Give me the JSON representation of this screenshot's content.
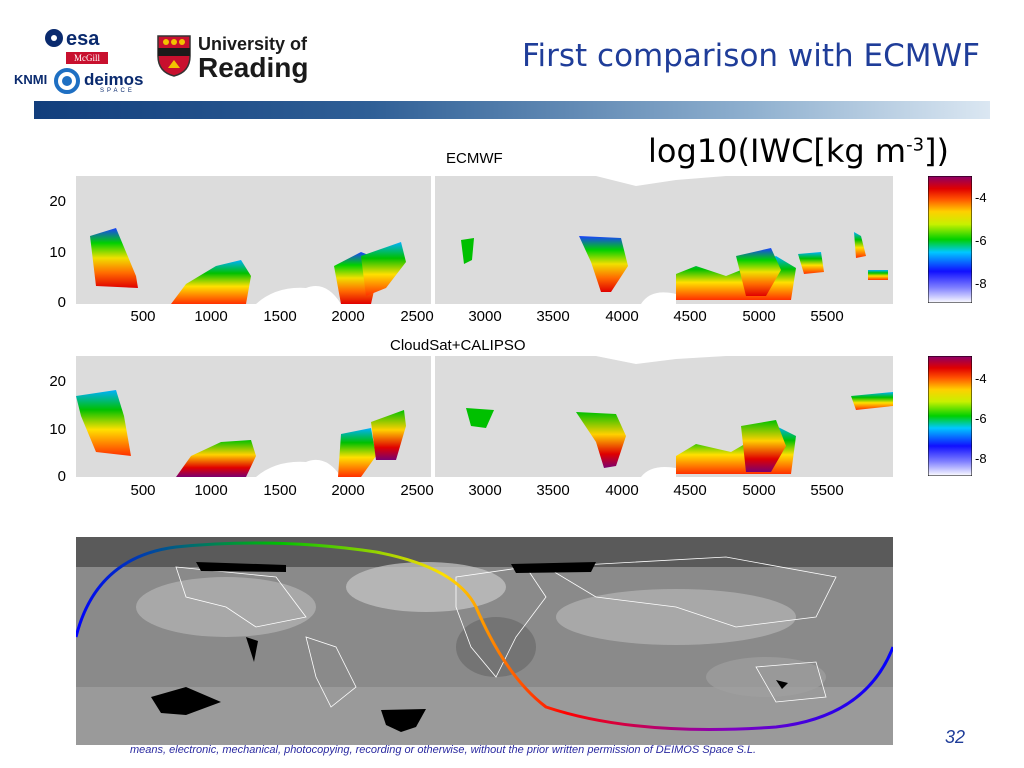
{
  "logos": {
    "esa": "esa",
    "mcgill": "McGill",
    "knmi": "KNMI",
    "deimos": "deimos",
    "deimos_sub": "SPACE",
    "reading_line1": "University of",
    "reading_line2": "Reading"
  },
  "slide": {
    "title": "First comparison with ECMWF",
    "formula_prefix": "log10(IWC[kg m",
    "formula_sup": "-3",
    "formula_suffix": "])",
    "page_number": "32",
    "footer_text": "means, electronic, mechanical, photocopying, recording or otherwise, without the prior written permission of DEIMOS Space S.L."
  },
  "colors": {
    "title": "#1f3d99",
    "plot_background": "#dcdcdc"
  },
  "plots": [
    {
      "title": "ECMWF",
      "x_ticks": [
        "500",
        "1000",
        "1500",
        "2000",
        "2500",
        "3000",
        "3500",
        "4000",
        "4500",
        "5000",
        "5500"
      ],
      "y_ticks": [
        "20",
        "10",
        "0"
      ],
      "colorbar_ticks": [
        "-4",
        "-6",
        "-8"
      ]
    },
    {
      "title": "CloudSat+CALIPSO",
      "x_ticks": [
        "500",
        "1000",
        "1500",
        "2000",
        "2500",
        "3000",
        "3500",
        "4000",
        "4500",
        "5000",
        "5500"
      ],
      "y_ticks": [
        "20",
        "10",
        "0"
      ],
      "colorbar_ticks": [
        "-4",
        "-6",
        "-8"
      ]
    }
  ],
  "map": {
    "description_label": "satellite track over global infrared image"
  }
}
